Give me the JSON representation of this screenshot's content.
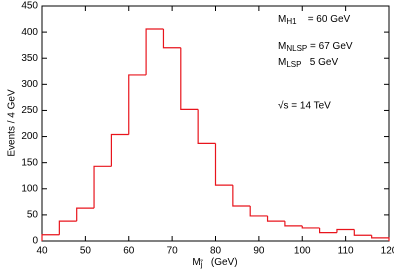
{
  "chart_data": {
    "type": "histogram",
    "bins": [
      40,
      44,
      48,
      52,
      56,
      60,
      64,
      68,
      72,
      76,
      80,
      84,
      88,
      92,
      96,
      100,
      104,
      108,
      112,
      116,
      120
    ],
    "counts": [
      12,
      38,
      63,
      143,
      204,
      318,
      406,
      370,
      252,
      187,
      107,
      67,
      48,
      38,
      29,
      25,
      16,
      22,
      11,
      6
    ],
    "color": "#e8141c",
    "xlim": [
      40,
      120
    ],
    "xticks": [
      40,
      50,
      60,
      70,
      80,
      90,
      100,
      110,
      120
    ],
    "ylim": [
      0,
      450
    ],
    "yticks": [
      0,
      50,
      100,
      150,
      200,
      250,
      300,
      350,
      400,
      450
    ],
    "y_label": "Events / 4 GeV",
    "x_label": {
      "main": "M",
      "sub": "j̃",
      "rest": "   (GeV)"
    },
    "annotations": [
      {
        "main": "M",
        "sub": "H1",
        "rest": "    = 60 GeV"
      },
      {
        "main": "M",
        "sub": "NLSP",
        "rest": " = 67 GeV"
      },
      {
        "main": "M",
        "sub": "LSP",
        "rest": "   5 GeV"
      },
      {
        "main": "√s = 14 TeV"
      }
    ]
  }
}
